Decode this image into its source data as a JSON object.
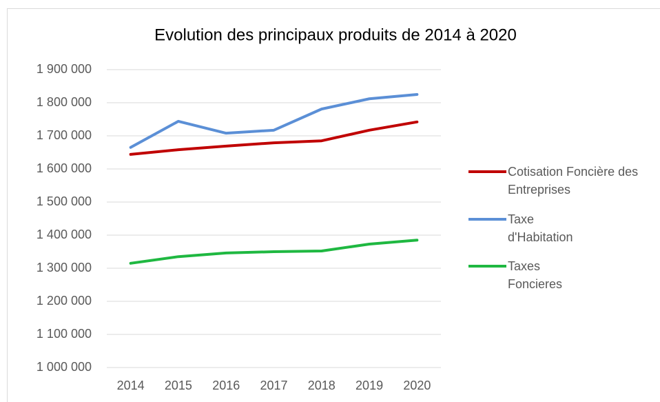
{
  "chart_data": {
    "type": "line",
    "title": "Evolution des principaux produits de 2014 à 2020",
    "categories": [
      "2014",
      "2015",
      "2016",
      "2017",
      "2018",
      "2019",
      "2020"
    ],
    "series": [
      {
        "name": "Cotisation Foncière des Entreprises",
        "color": "#c00000",
        "values": [
          1644000,
          1658000,
          1669000,
          1679000,
          1685000,
          1717000,
          1742000
        ]
      },
      {
        "name": "Taxe d'Habitation",
        "color": "#5b8fd6",
        "values": [
          1665000,
          1744000,
          1708000,
          1717000,
          1781000,
          1812000,
          1825000
        ]
      },
      {
        "name": "Taxes Foncieres",
        "color": "#1fb841",
        "values": [
          1315000,
          1335000,
          1346000,
          1350000,
          1352000,
          1373000,
          1385000
        ]
      }
    ],
    "ylim": [
      1000000,
      1900000
    ],
    "yticks": [
      {
        "value": 1000000,
        "label": "1 000 000"
      },
      {
        "value": 1100000,
        "label": "1 100 000"
      },
      {
        "value": 1200000,
        "label": "1 200 000"
      },
      {
        "value": 1300000,
        "label": "1 300 000"
      },
      {
        "value": 1400000,
        "label": "1 400 000"
      },
      {
        "value": 1500000,
        "label": "1 500 000"
      },
      {
        "value": 1600000,
        "label": "1 600 000"
      },
      {
        "value": 1700000,
        "label": "1 700 000"
      },
      {
        "value": 1800000,
        "label": "1 800 000"
      },
      {
        "value": 1900000,
        "label": "1 900 000"
      }
    ],
    "grid": true,
    "legend": "right"
  }
}
